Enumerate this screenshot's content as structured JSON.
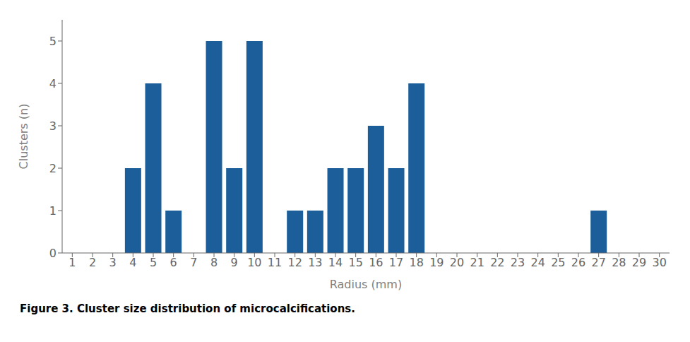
{
  "chart_data": {
    "type": "bar",
    "caption": "Figure 3. Cluster size distribution of microcalcifications.",
    "xlabel": "Radius (mm)",
    "ylabel": "Clusters (n)",
    "categories": [
      "1",
      "2",
      "3",
      "4",
      "5",
      "6",
      "7",
      "8",
      "9",
      "10",
      "11",
      "12",
      "13",
      "14",
      "15",
      "16",
      "17",
      "18",
      "19",
      "20",
      "21",
      "22",
      "23",
      "24",
      "25",
      "26",
      "27",
      "28",
      "29",
      "30"
    ],
    "values": [
      0,
      0,
      0,
      2,
      4,
      1,
      0,
      5,
      2,
      5,
      0,
      1,
      1,
      2,
      2,
      3,
      2,
      4,
      0,
      0,
      0,
      0,
      0,
      0,
      0,
      0,
      1,
      0,
      0,
      0
    ],
    "color": "#1B5E99",
    "ylim": [
      0,
      5.5
    ],
    "yticks": [
      0,
      1,
      2,
      3,
      4,
      5
    ],
    "grid": false
  }
}
